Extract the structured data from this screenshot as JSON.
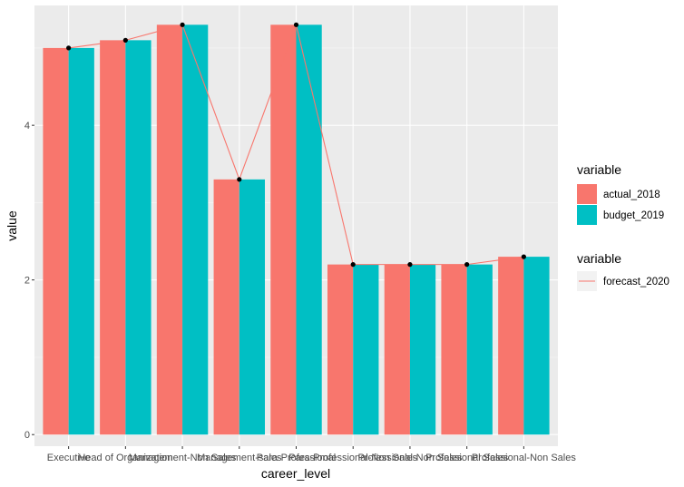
{
  "chart_data": {
    "type": "bar",
    "title": "",
    "xlabel": "career_level",
    "ylabel": "value",
    "ylim": [
      -0.15,
      5.55
    ],
    "yticks": [
      0,
      2,
      4
    ],
    "categories": [
      "Executive",
      "Head of Organization",
      "Management-Non Sales",
      "Management-sales",
      "Para-Professional",
      "Para-Professional-Non Sales",
      "Professional-Non Sales",
      "Professional Sales",
      "Professional-Non Sales"
    ],
    "series": [
      {
        "name": "actual_2018",
        "kind": "bar",
        "color": "#F8766D",
        "values": [
          5.0,
          5.1,
          5.3,
          3.3,
          5.3,
          2.2,
          2.2,
          2.2,
          2.3
        ]
      },
      {
        "name": "budget_2019",
        "kind": "bar",
        "color": "#00BFC4",
        "values": [
          5.0,
          5.1,
          5.3,
          3.3,
          5.3,
          2.2,
          2.2,
          2.2,
          2.3
        ]
      },
      {
        "name": "forecast_2020",
        "kind": "line",
        "color": "#F8766D",
        "values": [
          5.0,
          5.1,
          5.3,
          3.3,
          5.3,
          2.2,
          2.2,
          2.2,
          2.3
        ]
      }
    ],
    "legends": [
      {
        "title": "variable",
        "entries": [
          {
            "label": "actual_2018",
            "color": "#F8766D"
          },
          {
            "label": "budget_2019",
            "color": "#00BFC4"
          }
        ]
      },
      {
        "title": "variable",
        "entries": [
          {
            "label": "forecast_2020",
            "color": "#F8766D"
          }
        ]
      }
    ],
    "grid": true,
    "legend_position": "right"
  }
}
